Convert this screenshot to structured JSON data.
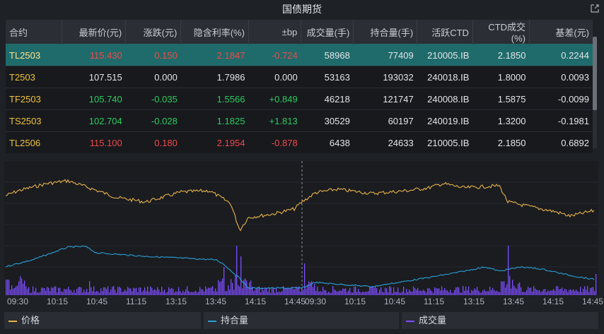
{
  "window": {
    "title": "国债期货"
  },
  "table": {
    "headers": [
      "合约",
      "最新价(元)",
      "涨跌(元)",
      "隐含利率(%)",
      "±bp",
      "成交量(手)",
      "持合量(手)",
      "活跃CTD",
      "CTD成交(%)",
      "基差(元)"
    ],
    "rows": [
      {
        "contract": "TL2503",
        "price": "115.430",
        "change": "0.150",
        "rate": "2.1847",
        "bp": "-0.724",
        "volume": "58968",
        "oi": "77409",
        "ctd": "210005.IB",
        "ctd_pct": "2.1850",
        "basis": "0.2244"
      },
      {
        "contract": "T2503",
        "price": "107.515",
        "change": "0.000",
        "rate": "1.7986",
        "bp": "0.000",
        "volume": "53163",
        "oi": "193032",
        "ctd": "240018.IB",
        "ctd_pct": "1.8000",
        "basis": "0.0093"
      },
      {
        "contract": "TF2503",
        "price": "105.740",
        "change": "-0.035",
        "rate": "1.5566",
        "bp": "+0.849",
        "volume": "46218",
        "oi": "121747",
        "ctd": "240008.IB",
        "ctd_pct": "1.5875",
        "basis": "-0.0099"
      },
      {
        "contract": "TS2503",
        "price": "102.704",
        "change": "-0.028",
        "rate": "1.1825",
        "bp": "+1.813",
        "volume": "30529",
        "oi": "60197",
        "ctd": "240019.IB",
        "ctd_pct": "1.3200",
        "basis": "-0.1981"
      },
      {
        "contract": "TL2506",
        "price": "115.100",
        "change": "0.180",
        "rate": "2.1954",
        "bp": "-0.878",
        "volume": "6438",
        "oi": "24633",
        "ctd": "210005.IB",
        "ctd_pct": "2.1850",
        "basis": "0.6892"
      }
    ]
  },
  "chart_data": {
    "type": "line",
    "x_ticks": [
      "09:30",
      "10:15",
      "10:45",
      "11:15",
      "13:15",
      "13:45",
      "14:15",
      "14:45",
      "09:30",
      "10:15",
      "10:45",
      "11:15",
      "13:15",
      "13:45",
      "14:15",
      "14:45"
    ],
    "legend": [
      "价格",
      "持合量",
      "成交量"
    ],
    "colors": {
      "price": "#e8b24a",
      "oi": "#2a9fd6",
      "volume": "#7c4dff"
    }
  },
  "legend": {
    "price": "价格",
    "oi": "持合量",
    "volume": "成交量"
  }
}
